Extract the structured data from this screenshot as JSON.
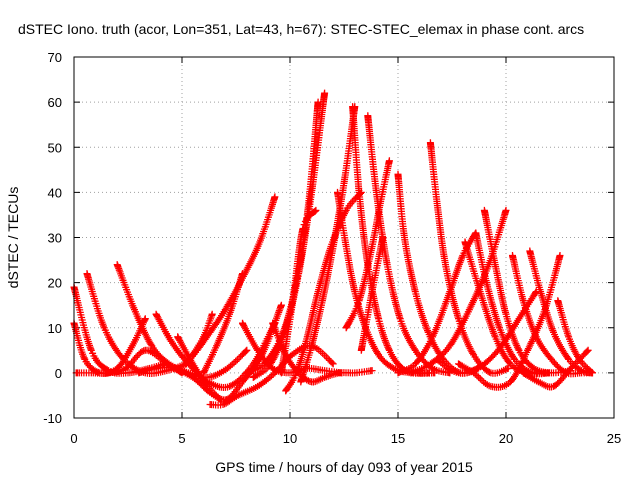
{
  "chart_data": {
    "type": "scatter",
    "title": "dSTEC Iono. truth (acor, Lon=351, Lat=43, h=67): STEC-STEC_elemax in phase cont. arcs",
    "xlabel": "GPS time / hours of day 093 of year 2015",
    "ylabel": "dSTEC  / TECUs",
    "xlim": [
      0,
      25
    ],
    "ylim": [
      -10,
      70
    ],
    "xticks": [
      0,
      5,
      10,
      15,
      20,
      25
    ],
    "yticks": [
      -10,
      0,
      10,
      20,
      30,
      40,
      50,
      60,
      70
    ],
    "grid": true,
    "marker": "+",
    "color": "#ff0000",
    "series": [
      {
        "x": [
          0.0,
          0.8,
          1.6,
          2.5,
          3.5,
          4.2
        ],
        "y": [
          19,
          5,
          0.5,
          0,
          1,
          2
        ]
      },
      {
        "x": [
          0.0,
          0.5,
          1.2,
          2.0,
          2.7,
          3.3
        ],
        "y": [
          11,
          3,
          0,
          1,
          6,
          12
        ]
      },
      {
        "x": [
          0.6,
          1.4,
          2.3,
          3.3,
          4.3,
          5.2
        ],
        "y": [
          22,
          10,
          3,
          0,
          0.5,
          2
        ]
      },
      {
        "x": [
          0.1,
          0.8,
          1.6,
          2.4,
          3.3,
          4.3,
          5.0
        ],
        "y": [
          0,
          0,
          0,
          1,
          5,
          2,
          0
        ]
      },
      {
        "x": [
          2.0,
          2.8,
          3.6,
          4.4,
          5.3,
          6.2,
          7.1,
          8.0
        ],
        "y": [
          24,
          14,
          6,
          2,
          0,
          -1,
          1,
          5
        ]
      },
      {
        "x": [
          3.8,
          4.5,
          5.3,
          6.2,
          7.2,
          8.3,
          9.3
        ],
        "y": [
          13,
          7,
          2,
          -2,
          -3,
          2,
          11
        ]
      },
      {
        "x": [
          4.8,
          5.5,
          6.2,
          7.0,
          7.8,
          8.7,
          9.6
        ],
        "y": [
          8,
          2,
          -3,
          -6,
          -2,
          4,
          15
        ]
      },
      {
        "x": [
          3.0,
          3.8,
          4.6,
          5.5,
          6.2,
          6.8
        ],
        "y": [
          0,
          1,
          1,
          -1,
          -4,
          -6
        ]
      },
      {
        "x": [
          6.3,
          6.9,
          7.6,
          8.5,
          9.3,
          10.1,
          11.0,
          12.0
        ],
        "y": [
          -7,
          -7,
          -5,
          -3,
          0,
          4,
          6,
          2
        ]
      },
      {
        "x": [
          5.2,
          5.7,
          6.3,
          7.0,
          7.8,
          8.6,
          9.3
        ],
        "y": [
          2,
          5,
          9,
          14,
          21,
          29,
          39
        ]
      },
      {
        "x": [
          6.0,
          6.6,
          7.2,
          7.8
        ],
        "y": [
          0,
          6,
          13,
          22
        ]
      },
      {
        "x": [
          5.5,
          6.0,
          6.4
        ],
        "y": [
          4,
          8,
          13
        ]
      },
      {
        "x": [
          7.8,
          8.5,
          9.2,
          10.0,
          10.8,
          11.6,
          12.4
        ],
        "y": [
          11,
          5,
          1,
          0,
          1,
          0.5,
          0
        ]
      },
      {
        "x": [
          9.2,
          9.8,
          10.4,
          11.0,
          11.6,
          12.3,
          13.0,
          13.8
        ],
        "y": [
          11,
          4,
          0,
          -2,
          -1,
          0,
          0,
          0.5
        ]
      },
      {
        "x": [
          8.0,
          8.8,
          9.6,
          10.2,
          10.8,
          11.3
        ],
        "y": [
          0,
          2,
          8,
          18,
          35,
          60
        ]
      },
      {
        "x": [
          8.3,
          9.1,
          9.8,
          10.4,
          11.0,
          11.6
        ],
        "y": [
          -1,
          2,
          10,
          22,
          40,
          62
        ]
      },
      {
        "x": [
          9.8,
          10.3,
          10.8,
          11.3,
          11.9,
          12.6,
          13.3
        ],
        "y": [
          -4,
          0,
          8,
          18,
          28,
          36,
          40
        ]
      },
      {
        "x": [
          9.6,
          10.1,
          10.6,
          11.2
        ],
        "y": [
          0,
          15,
          32,
          36
        ]
      },
      {
        "x": [
          10.5,
          11.0,
          11.5,
          12.0,
          12.5,
          13.0
        ],
        "y": [
          -2,
          6,
          16,
          28,
          42,
          59
        ]
      },
      {
        "x": [
          12.9,
          13.2,
          13.6,
          14.1,
          14.6,
          15.2,
          15.9,
          16.7
        ],
        "y": [
          59,
          40,
          24,
          12,
          5,
          1,
          0,
          0
        ]
      },
      {
        "x": [
          13.6,
          14.0,
          14.5,
          15.1,
          15.8,
          16.6,
          17.4
        ],
        "y": [
          57,
          40,
          24,
          12,
          5,
          1,
          0
        ]
      },
      {
        "x": [
          12.2,
          12.6,
          13.0,
          13.5,
          14.1,
          14.8,
          15.6,
          16.4
        ],
        "y": [
          40,
          28,
          18,
          10,
          4,
          1,
          0,
          0
        ]
      },
      {
        "x": [
          12.6,
          13.2,
          13.8,
          14.2,
          14.6
        ],
        "y": [
          10,
          16,
          28,
          38,
          47
        ]
      },
      {
        "x": [
          13.3,
          13.8,
          14.3
        ],
        "y": [
          5,
          18,
          30
        ]
      },
      {
        "x": [
          15.0,
          15.3,
          15.8,
          16.4,
          17.1,
          17.9,
          18.7
        ],
        "y": [
          44,
          30,
          18,
          9,
          3,
          0,
          1
        ]
      },
      {
        "x": [
          16.5,
          16.8,
          17.2,
          17.8,
          18.5,
          19.3,
          20.1
        ],
        "y": [
          51,
          38,
          24,
          12,
          4,
          0,
          1
        ]
      },
      {
        "x": [
          15.0,
          15.8,
          16.6,
          17.4,
          18.0,
          18.6
        ],
        "y": [
          0,
          2,
          8,
          18,
          26,
          31
        ]
      },
      {
        "x": [
          15.6,
          16.5,
          17.4,
          18.3,
          19.2,
          20.0
        ],
        "y": [
          0,
          2,
          6,
          14,
          24,
          36
        ]
      },
      {
        "x": [
          18.6,
          19.1,
          19.7,
          20.4,
          21.2,
          22.0
        ],
        "y": [
          31,
          20,
          10,
          3,
          0,
          0
        ]
      },
      {
        "x": [
          19.0,
          19.5,
          20.0,
          20.6,
          21.3,
          22.1,
          23.0
        ],
        "y": [
          36,
          24,
          13,
          5,
          1,
          0,
          0.5
        ]
      },
      {
        "x": [
          18.1,
          18.8,
          19.5,
          20.2,
          21.0,
          21.8
        ],
        "y": [
          29,
          18,
          8,
          2,
          0,
          0
        ]
      },
      {
        "x": [
          17.8,
          18.5,
          19.3,
          20.2,
          21.0,
          21.8,
          22.5
        ],
        "y": [
          2,
          0,
          -3,
          -2,
          5,
          14,
          26
        ]
      },
      {
        "x": [
          20.3,
          20.8,
          21.4,
          22.1,
          22.8,
          23.5,
          24.0
        ],
        "y": [
          26,
          16,
          8,
          3,
          0,
          0,
          0
        ]
      },
      {
        "x": [
          21.1,
          21.6,
          22.2,
          22.9,
          23.5,
          24.0
        ],
        "y": [
          27,
          18,
          9,
          3,
          0.5,
          0
        ]
      },
      {
        "x": [
          20.8,
          21.5,
          22.2,
          23.0,
          23.8
        ],
        "y": [
          0,
          -2,
          -3,
          1,
          5
        ]
      },
      {
        "x": [
          22.4,
          22.9,
          23.4,
          24.0
        ],
        "y": [
          16,
          8,
          3,
          0
        ]
      },
      {
        "x": [
          16.8,
          17.5,
          18.2,
          19.0,
          19.8,
          20.6,
          21.4
        ],
        "y": [
          3,
          0.5,
          0,
          2,
          6,
          12,
          18
        ]
      }
    ]
  }
}
